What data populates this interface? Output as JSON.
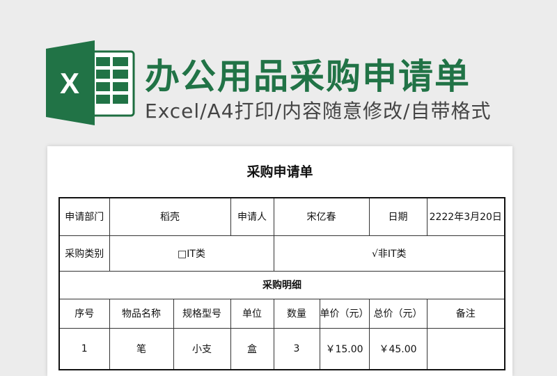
{
  "banner": {
    "title": "办公用品采购申请单",
    "subtitle": "Excel/A4打印/内容随意修改/自带格式",
    "logo_letter": "X",
    "brand_color": "#217346"
  },
  "doc": {
    "title": "采购申请单",
    "row1": [
      "申请部门",
      "稻壳",
      "申请人",
      "宋亿春",
      "日期",
      "2222年3月20日"
    ],
    "row2": [
      "采购类别",
      "□IT类",
      "√非IT类"
    ],
    "section": "采购明细",
    "headers": [
      "序号",
      "物品名称",
      "规格型号",
      "单位",
      "数量",
      "单价（元）",
      "总价（元）",
      "备注"
    ],
    "items": [
      [
        "1",
        "笔",
        "小支",
        "盒",
        "3",
        "￥15.00",
        "￥45.00",
        ""
      ]
    ]
  }
}
